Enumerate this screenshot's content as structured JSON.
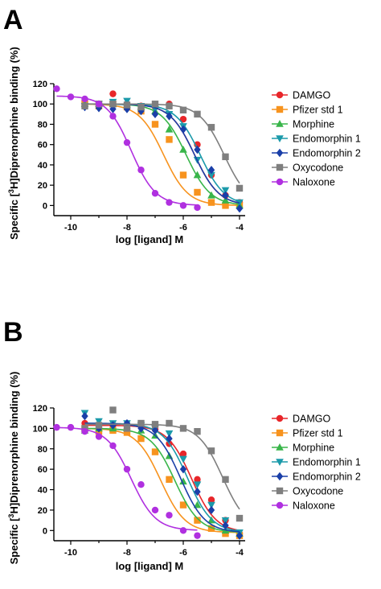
{
  "panels": [
    {
      "letter": "A",
      "chart_data": {
        "type": "line",
        "xlabel": "log [ligand] M",
        "ylabel": "Specific [3H]Diprenorphine binding (%)",
        "xlim": [
          -10.6,
          -3.8
        ],
        "ylim": [
          -10,
          120
        ],
        "xticks": [
          -10,
          -8,
          -6,
          -4
        ],
        "xtick_labels": [
          "-10",
          "-8",
          "-6",
          "-4"
        ],
        "yticks": [
          0,
          20,
          40,
          60,
          80,
          100,
          120
        ],
        "ytick_labels": [
          "0",
          "20",
          "40",
          "60",
          "80",
          "100",
          "120"
        ],
        "grid": false,
        "legend": "right",
        "series": [
          {
            "name": "DAMGO",
            "color": "#e8262a",
            "marker": "circle",
            "fit": {
              "top": 100,
              "bottom": 0,
              "logIC50": -5.6
            },
            "x": [
              -9.5,
              -9,
              -8.5,
              -8,
              -7.5,
              -7,
              -6.5,
              -6,
              -5.5,
              -5,
              -4.5,
              -4
            ],
            "y": [
              103,
              100,
              110,
              100,
              98,
              97,
              100,
              85,
              60,
              30,
              10,
              3
            ]
          },
          {
            "name": "Pfizer std 1",
            "color": "#f7931e",
            "marker": "square",
            "fit": {
              "top": 100,
              "bottom": 0,
              "logIC50": -6.7
            },
            "x": [
              -9.5,
              -9,
              -8.5,
              -8,
              -7.5,
              -7,
              -6.5,
              -6,
              -5.5,
              -5,
              -4.5,
              -4
            ],
            "y": [
              100,
              98,
              100,
              97,
              93,
              80,
              65,
              30,
              13,
              3,
              0,
              0
            ]
          },
          {
            "name": "Morphine",
            "color": "#39b54a",
            "marker": "triangle-up",
            "fit": {
              "top": 100,
              "bottom": 0,
              "logIC50": -5.9
            },
            "x": [
              -9.5,
              -9,
              -8.5,
              -8,
              -7.5,
              -7,
              -6.5,
              -6,
              -5.5,
              -5,
              -4.5,
              -4
            ],
            "y": [
              100,
              100,
              100,
              99,
              97,
              93,
              75,
              55,
              30,
              10,
              5,
              0
            ]
          },
          {
            "name": "Endomorphin 1",
            "color": "#1b9aaa",
            "marker": "triangle-down",
            "fit": {
              "top": 100,
              "bottom": 0,
              "logIC50": -5.4
            },
            "x": [
              -9.5,
              -9,
              -8.5,
              -8,
              -7.5,
              -7,
              -6.5,
              -6,
              -5.5,
              -5,
              -4.5,
              -4
            ],
            "y": [
              98,
              100,
              102,
              103,
              98,
              95,
              90,
              78,
              45,
              30,
              15,
              3
            ]
          },
          {
            "name": "Endomorphin 2",
            "color": "#1a3fa8",
            "marker": "diamond",
            "fit": {
              "top": 100,
              "bottom": 0,
              "logIC50": -5.6
            },
            "x": [
              -9.5,
              -9,
              -8.5,
              -8,
              -7.5,
              -7,
              -6.5,
              -6,
              -5.5,
              -5,
              -4.5,
              -4
            ],
            "y": [
              97,
              96,
              95,
              95,
              93,
              90,
              88,
              75,
              55,
              35,
              10,
              -3
            ]
          },
          {
            "name": "Oxycodone",
            "color": "#7f7f7f",
            "marker": "square",
            "fit": {
              "top": 100,
              "bottom": 0,
              "logIC50": -4.55
            },
            "x": [
              -9.5,
              -9,
              -8.5,
              -8,
              -7.5,
              -7,
              -6.5,
              -6,
              -5.5,
              -5,
              -4.5,
              -4
            ],
            "y": [
              98,
              100,
              100,
              99,
              97,
              100,
              98,
              94,
              90,
              77,
              48,
              17
            ]
          },
          {
            "name": "Naloxone",
            "color": "#b030e0",
            "marker": "circle",
            "fit": {
              "top": 108,
              "bottom": 0,
              "logIC50": -7.85
            },
            "x": [
              -10.5,
              -10,
              -9.5,
              -9,
              -8.5,
              -8,
              -7.5,
              -7,
              -6.5,
              -6,
              -5.5
            ],
            "y": [
              115,
              107,
              105,
              100,
              88,
              62,
              35,
              12,
              3,
              0,
              -2
            ]
          }
        ]
      }
    },
    {
      "letter": "B",
      "chart_data": {
        "type": "line",
        "xlabel": "log [ligand] M",
        "ylabel": "Specific [3H]Diprenorphine binding (%)",
        "xlim": [
          -10.6,
          -3.8
        ],
        "ylim": [
          -10,
          120
        ],
        "xticks": [
          -10,
          -8,
          -6,
          -4
        ],
        "xtick_labels": [
          "-10",
          "-8",
          "-6",
          "-4"
        ],
        "yticks": [
          0,
          20,
          40,
          60,
          80,
          100,
          120
        ],
        "ytick_labels": [
          "0",
          "20",
          "40",
          "60",
          "80",
          "100",
          "120"
        ],
        "grid": false,
        "legend": "right",
        "series": [
          {
            "name": "DAMGO",
            "color": "#e8262a",
            "marker": "circle",
            "fit": {
              "top": 103,
              "bottom": -2,
              "logIC50": -5.7
            },
            "x": [
              -9.5,
              -9,
              -8.5,
              -8,
              -7.5,
              -7,
              -6.5,
              -6,
              -5.5,
              -5,
              -4.5,
              -4
            ],
            "y": [
              105,
              100,
              103,
              100,
              102,
              99,
              85,
              75,
              50,
              30,
              10,
              -3
            ]
          },
          {
            "name": "Pfizer std 1",
            "color": "#f7931e",
            "marker": "square",
            "fit": {
              "top": 100,
              "bottom": -2,
              "logIC50": -6.8
            },
            "x": [
              -9.5,
              -9,
              -8.5,
              -8,
              -7.5,
              -7,
              -6.5,
              -6,
              -5.5,
              -5,
              -4.5,
              -4
            ],
            "y": [
              100,
              97,
              98,
              96,
              90,
              77,
              50,
              25,
              10,
              2,
              -3,
              -5
            ]
          },
          {
            "name": "Morphine",
            "color": "#39b54a",
            "marker": "triangle-up",
            "fit": {
              "top": 100,
              "bottom": -2,
              "logIC50": -6.3
            },
            "x": [
              -9.5,
              -9,
              -8.5,
              -8,
              -7.5,
              -7,
              -6.5,
              -6,
              -5.5,
              -5,
              -4.5,
              -4
            ],
            "y": [
              98,
              100,
              100,
              100,
              98,
              93,
              73,
              48,
              25,
              10,
              0,
              -3
            ]
          },
          {
            "name": "Endomorphin 1",
            "color": "#1b9aaa",
            "marker": "triangle-down",
            "fit": {
              "top": 105,
              "bottom": -2,
              "logIC50": -5.85
            },
            "x": [
              -9.5,
              -9,
              -8.5,
              -8,
              -7.5,
              -7,
              -6.5,
              -6,
              -5.5,
              -5,
              -4.5,
              -4
            ],
            "y": [
              115,
              107,
              105,
              105,
              103,
              100,
              95,
              70,
              45,
              25,
              10,
              -2
            ]
          },
          {
            "name": "Endomorphin 2",
            "color": "#1a3fa8",
            "marker": "diamond",
            "fit": {
              "top": 105,
              "bottom": -2,
              "logIC50": -6.1
            },
            "x": [
              -9.5,
              -9,
              -8.5,
              -8,
              -7.5,
              -7,
              -6.5,
              -6,
              -5.5,
              -5,
              -4.5,
              -4
            ],
            "y": [
              112,
              100,
              103,
              105,
              100,
              98,
              90,
              60,
              38,
              20,
              5,
              -5
            ]
          },
          {
            "name": "Oxycodone",
            "color": "#7f7f7f",
            "marker": "square",
            "fit": {
              "top": 104,
              "bottom": 0,
              "logIC50": -4.6
            },
            "x": [
              -9.5,
              -9,
              -8.5,
              -8,
              -7.5,
              -7,
              -6.5,
              -6,
              -5.5,
              -5,
              -4.5,
              -4
            ],
            "y": [
              100,
              103,
              118,
              100,
              105,
              104,
              105,
              100,
              97,
              78,
              50,
              12
            ]
          },
          {
            "name": "Naloxone",
            "color": "#b030e0",
            "marker": "circle",
            "fit": {
              "top": 101,
              "bottom": 0,
              "logIC50": -7.85
            },
            "x": [
              -10.5,
              -10,
              -9.5,
              -9,
              -8.5,
              -8,
              -7.5,
              -7,
              -6.5,
              -6,
              -5.5
            ],
            "y": [
              101,
              101,
              97,
              92,
              83,
              60,
              45,
              20,
              15,
              0,
              -5
            ]
          }
        ]
      }
    }
  ]
}
